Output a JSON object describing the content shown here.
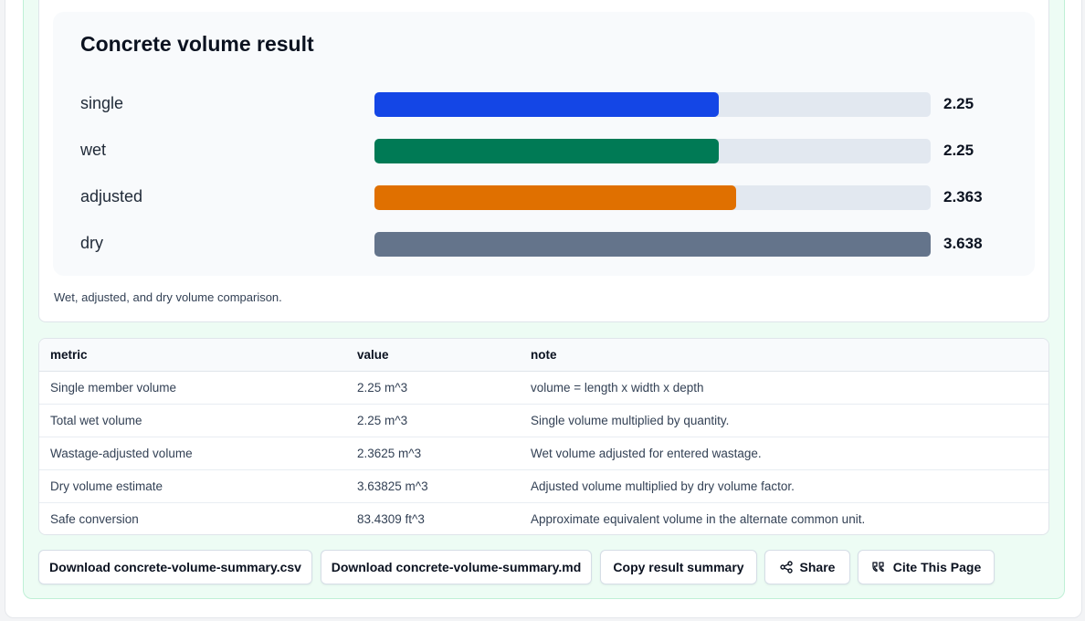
{
  "chart": {
    "title": "Concrete volume result",
    "caption": "Wet, adjusted, and dry volume comparison."
  },
  "chart_data": {
    "type": "bar",
    "orientation": "horizontal",
    "title": "Concrete volume result",
    "categories": [
      "single",
      "wet",
      "adjusted",
      "dry"
    ],
    "values": [
      2.25,
      2.25,
      2.363,
      3.638
    ],
    "value_labels": [
      "2.25",
      "2.25",
      "2.363",
      "3.638"
    ],
    "colors": [
      "#1446e6",
      "#007a55",
      "#e07000",
      "#64748b"
    ],
    "track_color": "#e2e8f0",
    "xlim": [
      0,
      3.638
    ],
    "grid": false,
    "legend": "none"
  },
  "table": {
    "headers": [
      "metric",
      "value",
      "note"
    ],
    "rows": [
      [
        "Single member volume",
        "2.25 m^3",
        "volume = length x width x depth"
      ],
      [
        "Total wet volume",
        "2.25 m^3",
        "Single volume multiplied by quantity."
      ],
      [
        "Wastage-adjusted volume",
        "2.3625 m^3",
        "Wet volume adjusted for entered wastage."
      ],
      [
        "Dry volume estimate",
        "3.63825 m^3",
        "Adjusted volume multiplied by dry volume factor."
      ],
      [
        "Safe conversion",
        "83.4309 ft^3",
        "Approximate equivalent volume in the alternate common unit."
      ]
    ]
  },
  "actions": {
    "download_csv": "Download concrete-volume-summary.csv",
    "download_md": "Download concrete-volume-summary.md",
    "copy_summary": "Copy result summary",
    "share": "Share",
    "cite": "Cite This Page",
    "share_icon": "share-icon",
    "cite_icon": "quote-icon"
  }
}
